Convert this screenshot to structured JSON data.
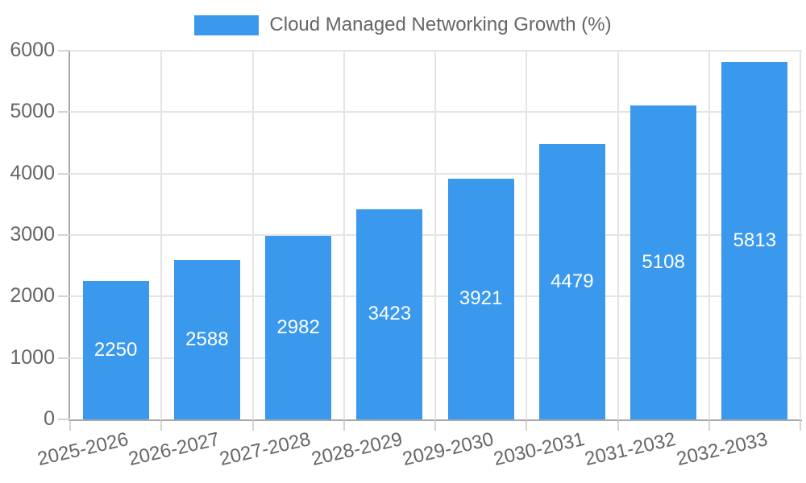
{
  "chart_data": {
    "type": "bar",
    "title": "Cloud Managed Networking Growth (%)",
    "legend": {
      "label": "Cloud Managed Networking Growth (%)",
      "position": "top"
    },
    "categories": [
      "2025-2026",
      "2026-2027",
      "2027-2028",
      "2028-2029",
      "2029-2030",
      "2030-2031",
      "2031-2032",
      "2032-2033"
    ],
    "values": [
      2250,
      2588,
      2982,
      3423,
      3921,
      4479,
      5108,
      5813
    ],
    "data_labels_shown": true,
    "xlabel": "",
    "ylabel": "",
    "ylim": [
      0,
      6000
    ],
    "y_ticks": [
      0,
      1000,
      2000,
      3000,
      4000,
      5000,
      6000
    ],
    "grid": true,
    "x_label_rotation_deg": -13,
    "colors": {
      "bar": "#3a99ed",
      "data_label": "#ffffff",
      "axis_text": "#666666",
      "grid_line": "#e4e4e4",
      "tick_mark": "#d4d4d4",
      "axis_line": "#a8a8a8",
      "background": "#ffffff"
    }
  }
}
